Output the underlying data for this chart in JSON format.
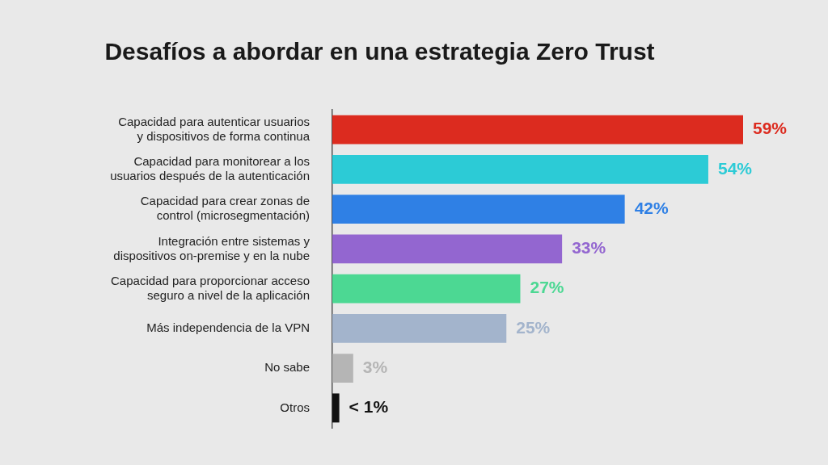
{
  "chart_data": {
    "type": "bar",
    "orientation": "horizontal",
    "title": "Desafíos a abordar en una estrategia Zero Trust",
    "categories": [
      "Capacidad para autenticar usuarios y dispositivos de forma continua",
      "Capacidad para monitorear a los usuarios después de la autenticación",
      "Capacidad para crear zonas de control (microsegmentación)",
      "Integración entre sistemas y dispositivos on-premise y en la nube",
      "Capacidad para proporcionar acceso seguro a nivel de la aplicación",
      "Más independencia de la VPN",
      "No sabe",
      "Otros"
    ],
    "values": [
      59,
      54,
      42,
      33,
      27,
      25,
      3,
      1
    ],
    "value_labels": [
      "59%",
      "54%",
      "42%",
      "33%",
      "27%",
      "25%",
      "3%",
      "< 1%"
    ],
    "colors": [
      "#dc2b1f",
      "#2ccbd6",
      "#2f80e5",
      "#9366d0",
      "#4cd893",
      "#a3b4cc",
      "#b5b5b5",
      "#111111"
    ],
    "legend": false,
    "grid": false
  }
}
